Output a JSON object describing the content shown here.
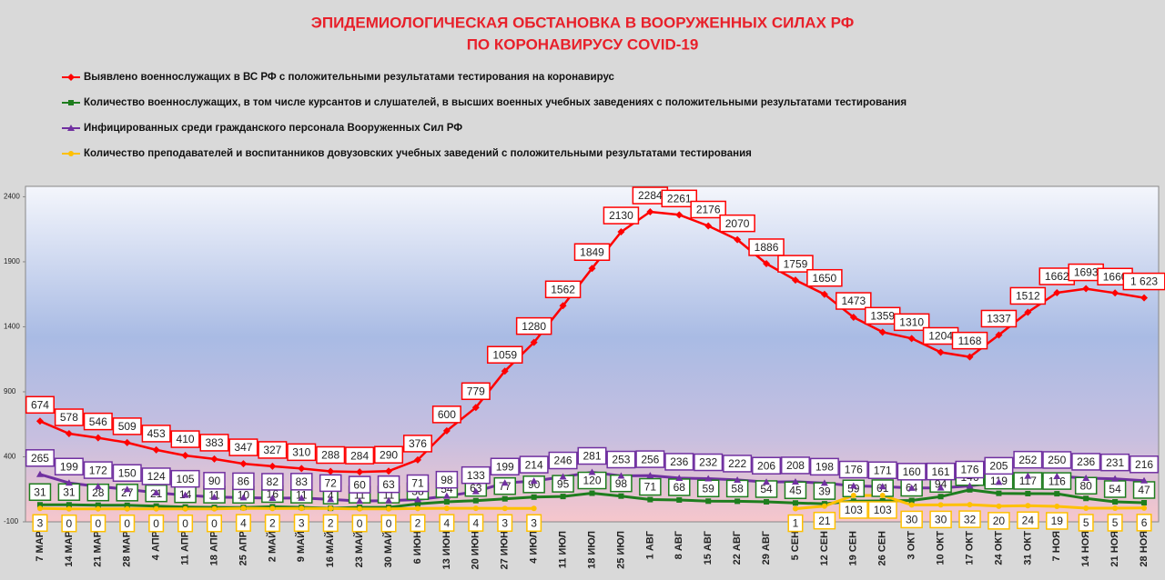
{
  "chart_data": {
    "type": "line",
    "title": [
      "ЭПИДЕМИОЛОГИЧЕСКАЯ ОБСТАНОВКА В ВООРУЖЕННЫХ СИЛАХ РФ",
      "ПО КОРОНАВИРУСУ COVID-19"
    ],
    "legend": "top",
    "categories": [
      "7 МАР",
      "14 МАР",
      "21 МАР",
      "28 МАР",
      "4 АПР",
      "11 АПР",
      "18 АПР",
      "25 АПР",
      "2 МАЙ",
      "9 МАЙ",
      "16 МАЙ",
      "23 МАЙ",
      "30 МАЙ",
      "6 ИЮН",
      "13 ИЮН",
      "20 ИЮН",
      "27 ИЮН",
      "4 ИЮЛ",
      "11 ИЮЛ",
      "18 ИЮЛ",
      "25 ИЮЛ",
      "1 АВГ",
      "8 АВГ",
      "15 АВГ",
      "22 АВГ",
      "29 АВГ",
      "5 СЕН",
      "12 СЕН",
      "19 СЕН",
      "26 СЕН",
      "3 ОКТ",
      "10 ОКТ",
      "17 ОКТ",
      "24 ОКТ",
      "31 ОКТ",
      "7 НОЯ",
      "14 НОЯ",
      "21 НОЯ",
      "28 НОЯ"
    ],
    "ylim": [
      -100,
      2480
    ],
    "yticks": [
      -100,
      400,
      900,
      1400,
      1900,
      2400
    ],
    "series": [
      {
        "name": "Выявлено военнослужащих в ВС РФ с положительными результатами тестирования на коронавирус",
        "color": "#ff0000",
        "marker": "diamond",
        "values": [
          674,
          578,
          546,
          509,
          453,
          410,
          383,
          347,
          327,
          310,
          288,
          284,
          290,
          376,
          600,
          779,
          1059,
          1280,
          1562,
          1849,
          2130,
          2284,
          2261,
          2176,
          2070,
          1886,
          1759,
          1650,
          1473,
          1359,
          1310,
          1204,
          1168,
          1337,
          1512,
          1662,
          1693,
          1660,
          1623
        ],
        "value_labels": [
          "674",
          "578",
          "546",
          "509",
          "453",
          "410",
          "383",
          "347",
          "327",
          "310",
          "288",
          "284",
          "290",
          "376",
          "600",
          "779",
          "1059",
          "1280",
          "1562",
          "1849",
          "2130",
          "2284",
          "2261",
          "2176",
          "2070",
          "1886",
          "1759",
          "1650",
          "1473",
          "1359",
          "1310",
          "1204",
          "1168",
          "1337",
          "1512",
          "1662",
          "1693",
          "1660",
          "1 623"
        ]
      },
      {
        "name": "Количество военнослужащих, в том числе курсантов и слушателей, в высших военных учебных заведениях с положительными результатами тестирования",
        "color": "#1e7d1e",
        "marker": "square",
        "values": [
          31,
          31,
          28,
          27,
          21,
          14,
          11,
          10,
          16,
          11,
          4,
          11,
          11,
          38,
          54,
          63,
          77,
          90,
          95,
          120,
          98,
          71,
          68,
          59,
          58,
          54,
          45,
          39,
          59,
          61,
          64,
          94,
          146,
          119,
          117,
          116,
          80,
          54,
          47
        ]
      },
      {
        "name": "Инфицированных среди гражданского персонала Вооруженных Сил РФ",
        "color": "#7030a0",
        "marker": "triangle",
        "values": [
          265,
          199,
          172,
          150,
          124,
          105,
          90,
          86,
          82,
          83,
          72,
          60,
          63,
          71,
          98,
          133,
          199,
          214,
          246,
          281,
          253,
          256,
          236,
          232,
          222,
          206,
          208,
          198,
          176,
          171,
          160,
          161,
          176,
          205,
          252,
          250,
          236,
          231,
          216
        ]
      },
      {
        "name": "Количество преподавателей и воспитанников довузовских учебных заведений с положительными результатами тестирования",
        "color": "#ffc000",
        "marker": "circle",
        "values": [
          3,
          0,
          0,
          0,
          0,
          0,
          0,
          4,
          2,
          3,
          2,
          0,
          0,
          2,
          4,
          4,
          3,
          3,
          null,
          null,
          null,
          null,
          null,
          null,
          null,
          null,
          1,
          21,
          103,
          103,
          30,
          30,
          32,
          20,
          24,
          19,
          5,
          5,
          6
        ]
      }
    ]
  }
}
